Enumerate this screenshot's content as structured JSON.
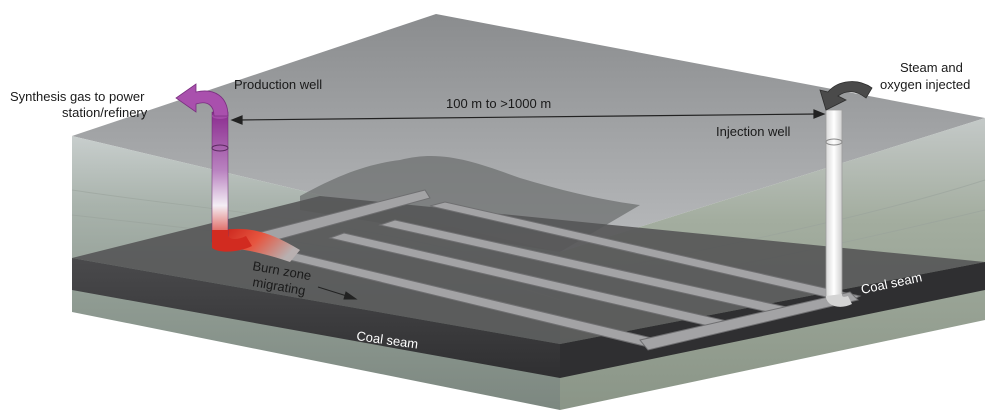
{
  "labels": {
    "synthesis_gas_line1": "Synthesis gas to power",
    "synthesis_gas_line2": "station/refinery",
    "production_well": "Production well",
    "distance": "100 m to >1000 m",
    "injection_well": "Injection well",
    "steam_line1": "Steam and",
    "steam_line2": "oxygen injected",
    "burn_zone_line1": "Burn zone",
    "burn_zone_line2": "migrating",
    "coal_seam_front": "Coal seam",
    "coal_seam_right": "Coal seam"
  },
  "colors": {
    "production_flow_top": "#8a2a8e",
    "production_flow_mid": "#e9d6ee",
    "burn_zone": "#d32a1f",
    "coal_seam": "#3a3a3c",
    "channel": "#9a9a9c",
    "injection_well": "#f2f2f2"
  },
  "icons": {
    "synthesis_arrow": "curved-arrow-left-icon",
    "steam_arrow": "curved-arrow-down-icon",
    "burn_direction": "arrow-right-icon"
  }
}
